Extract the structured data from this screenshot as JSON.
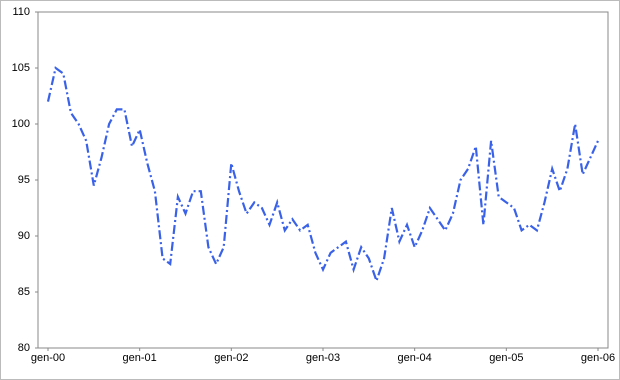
{
  "chart_data": {
    "type": "line",
    "categories": [
      "gen-00",
      null,
      null,
      null,
      null,
      null,
      null,
      null,
      null,
      null,
      null,
      null,
      "gen-01",
      null,
      null,
      null,
      null,
      null,
      null,
      null,
      null,
      null,
      null,
      null,
      "gen-02",
      null,
      null,
      null,
      null,
      null,
      null,
      null,
      null,
      null,
      null,
      null,
      "gen-03",
      null,
      null,
      null,
      null,
      null,
      null,
      null,
      null,
      null,
      null,
      null,
      "gen-04",
      null,
      null,
      null,
      null,
      null,
      null,
      null,
      null,
      null,
      null,
      null,
      "gen-05",
      null,
      null,
      null,
      null,
      null,
      null,
      null,
      null,
      null,
      null,
      null,
      "gen-06"
    ],
    "series": [
      {
        "color": "#3a62e8",
        "values": [
          102,
          105,
          104.5,
          101,
          100,
          98.5,
          94.5,
          97,
          100,
          101.3,
          101.3,
          98,
          99.5,
          96.5,
          94,
          88,
          87.5,
          93.5,
          92,
          94,
          94,
          89,
          87.5,
          89,
          96.5,
          94,
          92,
          93,
          92.5,
          91,
          93,
          90.5,
          91.5,
          90.5,
          91,
          88.5,
          87,
          88.5,
          89,
          89.5,
          87,
          89,
          88,
          86,
          88,
          92.5,
          89.5,
          91,
          89,
          90.5,
          92.5,
          91.5,
          90.5,
          92,
          95,
          96,
          98,
          91,
          98.5,
          93.5,
          93,
          92.5,
          90.5,
          91,
          90.5,
          93,
          96,
          94,
          96,
          100,
          95.5,
          97,
          98.5
        ]
      }
    ],
    "ylim": [
      80,
      110
    ],
    "yticks": [
      80,
      85,
      90,
      95,
      100,
      105,
      110
    ]
  }
}
